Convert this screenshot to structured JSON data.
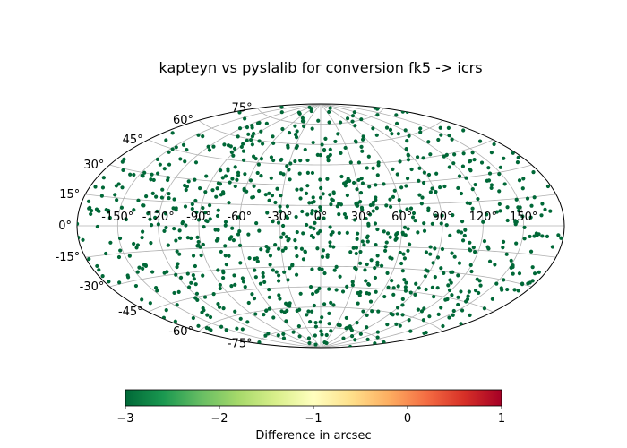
{
  "chart_data": {
    "type": "scatter",
    "projection": "aitoff",
    "title": "kapteyn vs pyslalib for conversion fk5 -> icrs",
    "xlabel": "",
    "ylabel": "",
    "grid": true,
    "longitude_tick_labels": [
      "-150°",
      "-120°",
      "-90°",
      "-60°",
      "-30°",
      "0°",
      "30°",
      "60°",
      "90°",
      "120°",
      "150°"
    ],
    "latitude_tick_labels": [
      "-75°",
      "-60°",
      "-45°",
      "-30°",
      "-15°",
      "0°",
      "15°",
      "30°",
      "45°",
      "60°",
      "75°"
    ],
    "point_color": "#006837",
    "point_count": 1000,
    "point_distribution": "uniform on the sphere",
    "colorbar": {
      "label": "Difference in arcsec",
      "range": [
        -3,
        1
      ],
      "ticks": [
        "−3",
        "−2",
        "−1",
        "0",
        "1"
      ],
      "colormap": "RdYlGn_r",
      "colors": [
        "#006837",
        "#1a9850",
        "#66bd63",
        "#a6d96a",
        "#d9ef8b",
        "#ffffbf",
        "#fee08b",
        "#fdae61",
        "#f46d43",
        "#d73027",
        "#a50026"
      ]
    }
  }
}
